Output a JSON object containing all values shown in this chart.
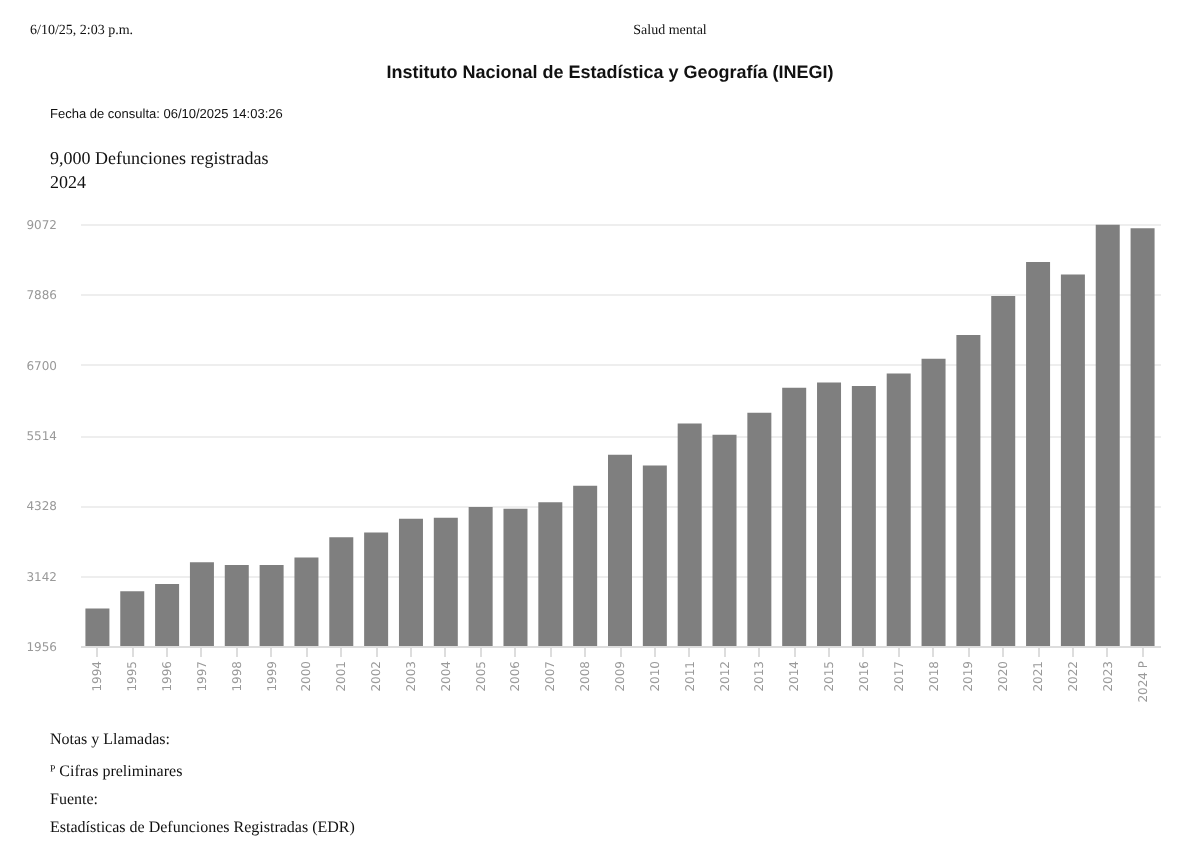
{
  "chart_data": {
    "type": "bar",
    "title": "Instituto Nacional de Estadística y Geografía (INEGI)",
    "subtitle": "Fecha de consulta: 06/10/2025 14:03:26",
    "categories": [
      "1994",
      "1995",
      "1996",
      "1997",
      "1998",
      "1999",
      "2000",
      "2001",
      "2002",
      "2003",
      "2004",
      "2005",
      "2006",
      "2007",
      "2008",
      "2009",
      "2010",
      "2011",
      "2012",
      "2013",
      "2014",
      "2015",
      "2016",
      "2017",
      "2018",
      "2019",
      "2020",
      "2021",
      "2022",
      "2023",
      "2024 P"
    ],
    "values": [
      2590,
      2880,
      3000,
      3370,
      3320,
      3320,
      3450,
      3790,
      3870,
      4100,
      4120,
      4300,
      4270,
      4380,
      4660,
      5180,
      5000,
      5710,
      5520,
      5890,
      6310,
      6400,
      6340,
      6550,
      6800,
      7200,
      7860,
      8430,
      8220,
      9060,
      9000
    ],
    "color": "#7f7f7f",
    "ylim": [
      1956,
      9072
    ],
    "yticks": [
      1956,
      3142,
      4328,
      5514,
      6700,
      7886,
      9072
    ],
    "grid": "y",
    "annotations": [
      "6/10/25, 2:03 p.m.",
      "Salud mental",
      "9,000  Defunciones registradas",
      "2024",
      "Notas y Llamadas:",
      "ᴾ Cifras preliminares",
      "Fuente:",
      "Estadísticas de Defunciones Registradas (EDR)"
    ]
  }
}
